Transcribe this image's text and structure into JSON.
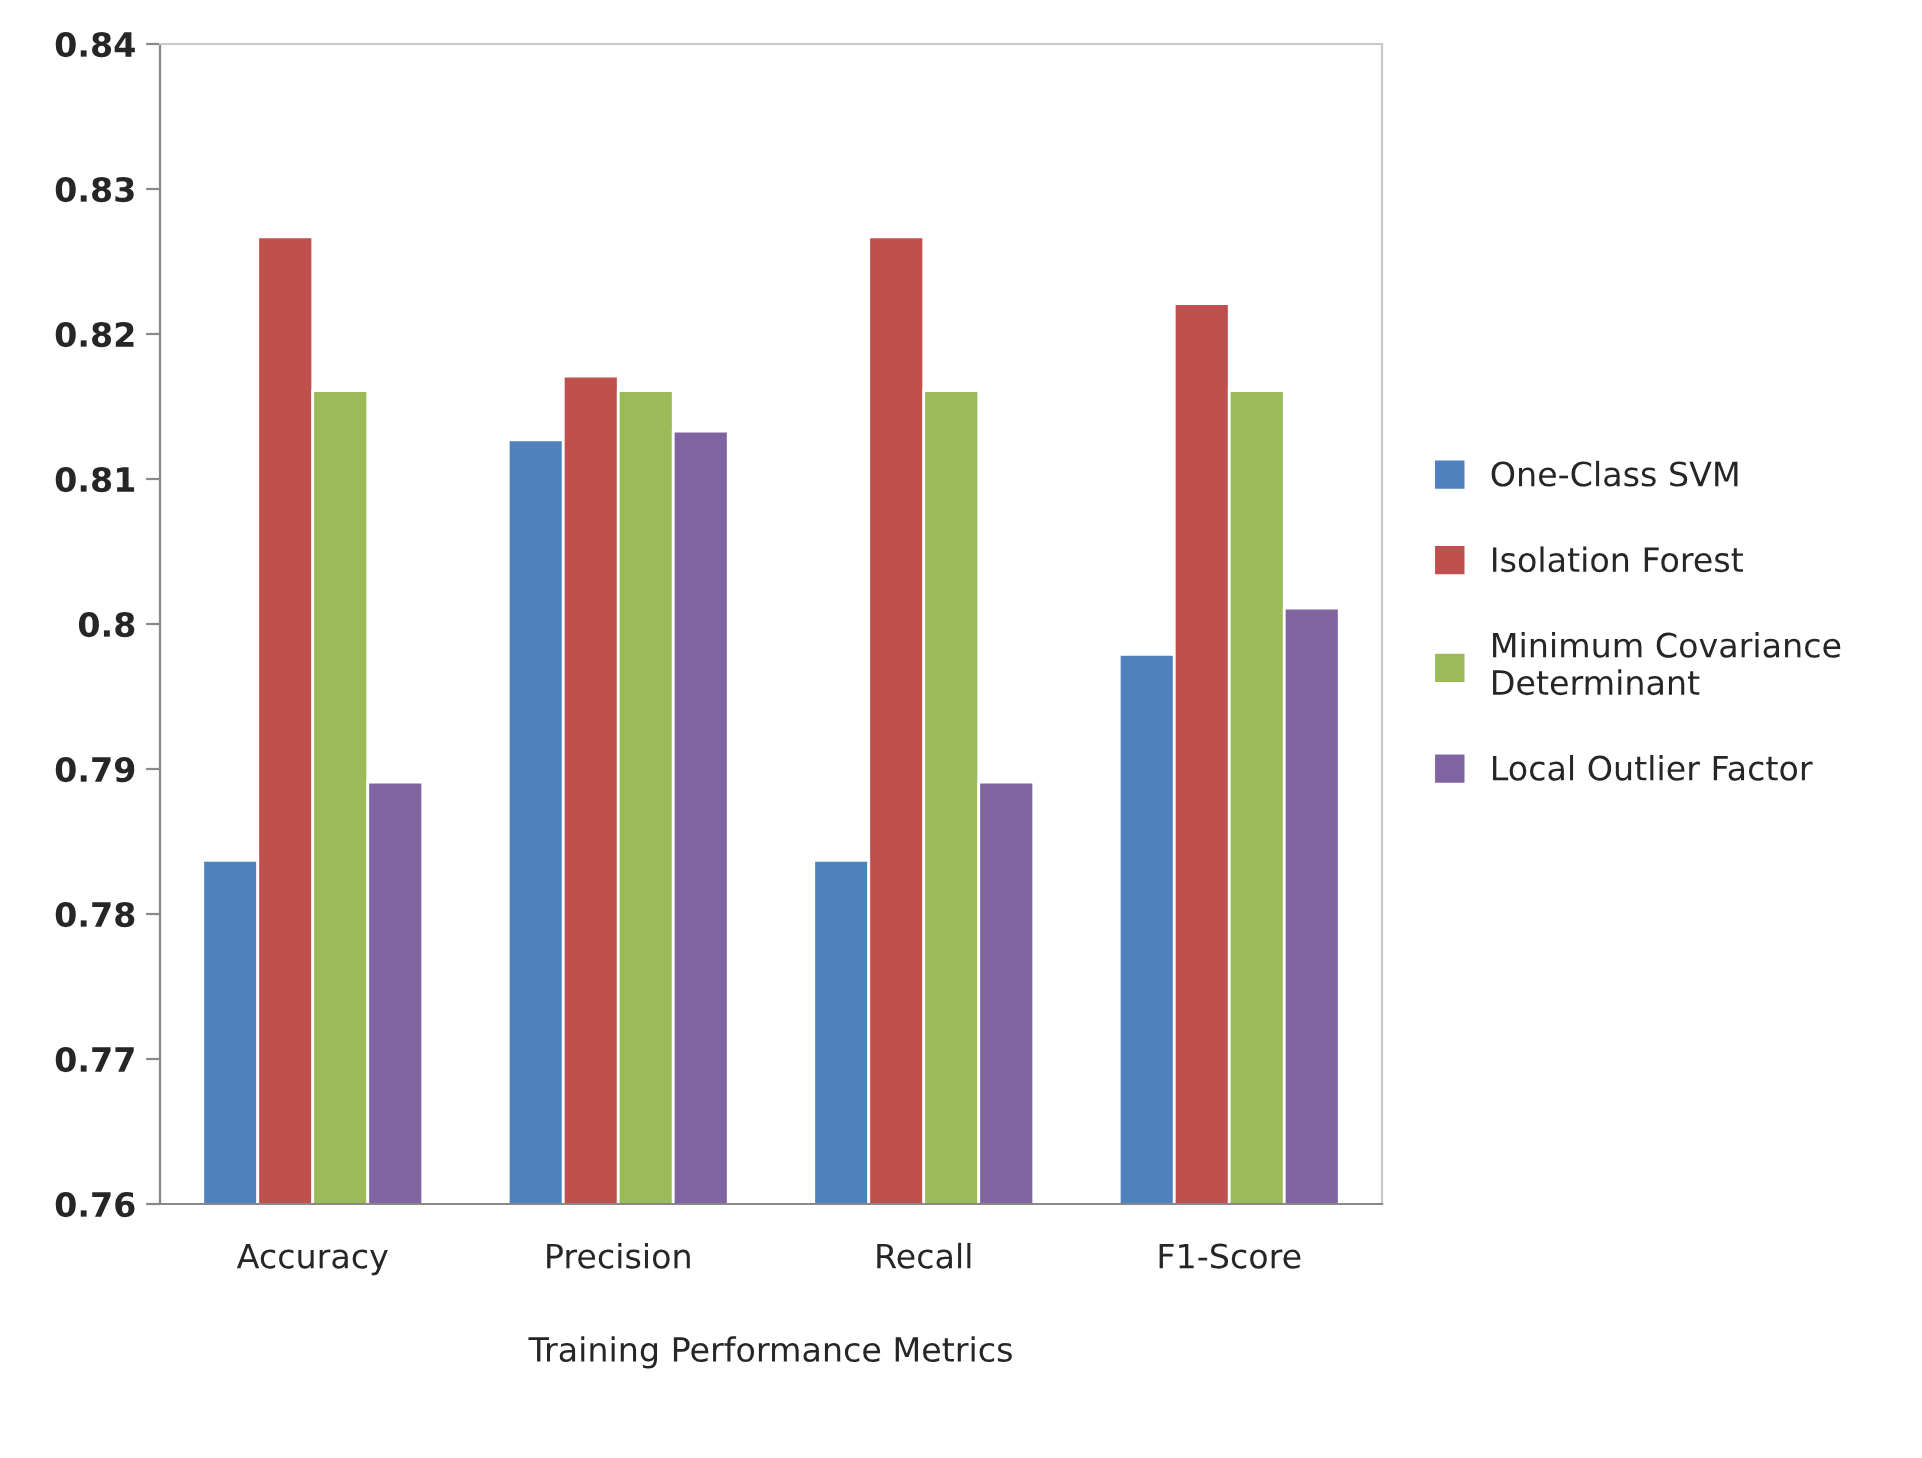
{
  "chart_data": {
    "type": "bar",
    "xlabel": "Training Performance Metrics",
    "categories": [
      "Accuracy",
      "Precision",
      "Recall",
      "F1-Score"
    ],
    "series": [
      {
        "name": "One-Class SVM",
        "color": "#4f81bd",
        "values": [
          0.7837,
          0.8127,
          0.7837,
          0.7979
        ]
      },
      {
        "name": "Isolation Forest",
        "color": "#c0504d",
        "values": [
          0.8267,
          0.8171,
          0.8267,
          0.8221
        ]
      },
      {
        "name": "Minimum Covariance\nDeterminant",
        "color": "#9bbb59",
        "values": [
          0.8161,
          0.8161,
          0.8161,
          0.8161
        ]
      },
      {
        "name": "Local Outlier Factor",
        "color": "#8064a2",
        "values": [
          0.7891,
          0.8133,
          0.7891,
          0.8011
        ]
      }
    ],
    "ylim": [
      0.76,
      0.84
    ],
    "yticks": [
      {
        "value": 0.76,
        "label": "0.76"
      },
      {
        "value": 0.77,
        "label": "0.77"
      },
      {
        "value": 0.78,
        "label": "0.78"
      },
      {
        "value": 0.79,
        "label": "0.79"
      },
      {
        "value": 0.8,
        "label": "0.8"
      },
      {
        "value": 0.81,
        "label": "0.81"
      },
      {
        "value": 0.82,
        "label": "0.82"
      },
      {
        "value": 0.83,
        "label": "0.83"
      },
      {
        "value": 0.84,
        "label": "0.84"
      }
    ],
    "grid": false,
    "legend": "right"
  }
}
